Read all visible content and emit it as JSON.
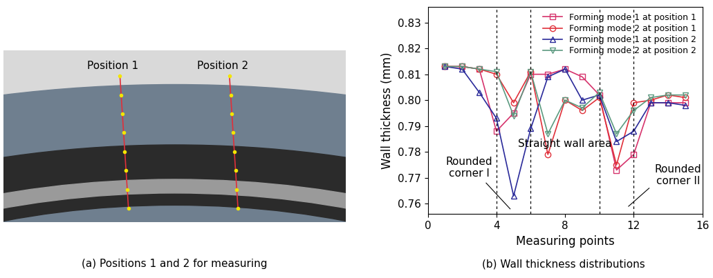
{
  "photo": {
    "labels": [
      "Position 1",
      "Position 2"
    ],
    "caption": "(a) Positions 1 and 2 for measuring"
  },
  "chart_data": {
    "type": "line",
    "caption": "(b) Wall thickness distributions",
    "x_label": "Measuring points",
    "y_label": "Wall thickness (mm)",
    "x": [
      1,
      2,
      3,
      4,
      5,
      6,
      7,
      8,
      9,
      10,
      11,
      12,
      13,
      14,
      15
    ],
    "series": [
      {
        "name": "Forming mode 1 at position 1",
        "color": "#d6336c",
        "marker": "square",
        "values": [
          0.813,
          0.813,
          0.812,
          0.788,
          0.795,
          0.81,
          0.81,
          0.812,
          0.809,
          0.802,
          0.773,
          0.779,
          0.799,
          0.799,
          0.799
        ]
      },
      {
        "name": "Forming mode 2 at position 1",
        "color": "#e0303a",
        "marker": "circle",
        "values": [
          0.813,
          0.813,
          0.812,
          0.81,
          0.799,
          0.811,
          0.779,
          0.8,
          0.796,
          0.801,
          0.775,
          0.799,
          0.8,
          0.802,
          0.801
        ]
      },
      {
        "name": "Forming mode 1 at position 2",
        "color": "#2a2a9a",
        "marker": "triangle_up",
        "values": [
          0.813,
          0.812,
          0.803,
          0.793,
          0.763,
          0.789,
          0.809,
          0.812,
          0.8,
          0.802,
          0.784,
          0.788,
          0.799,
          0.799,
          0.798
        ]
      },
      {
        "name": "Forming mode 2 at position 2",
        "color": "#5c9a80",
        "marker": "triangle_down",
        "values": [
          0.813,
          0.813,
          0.812,
          0.811,
          0.794,
          0.811,
          0.787,
          0.8,
          0.797,
          0.803,
          0.787,
          0.796,
          0.801,
          0.802,
          0.802
        ]
      }
    ],
    "vlines": [
      4,
      6,
      10,
      12
    ],
    "annotations": [
      "Rounded\ncorner I",
      "Straight wall area",
      "Rounded\ncorner II"
    ],
    "xlim": [
      0,
      16
    ],
    "xticks": [
      0,
      4,
      8,
      12,
      16
    ],
    "ylim": [
      0.756,
      0.836
    ],
    "yticks": [
      0.76,
      0.77,
      0.78,
      0.79,
      {
        "value": 0.8,
        "label": "0.80"
      },
      0.81,
      0.82,
      0.83
    ],
    "legend": "upper right",
    "grid": false
  }
}
